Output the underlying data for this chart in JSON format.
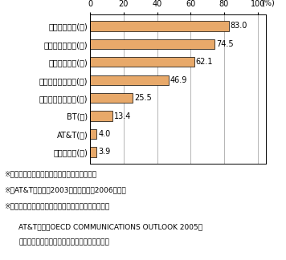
{
  "categories": [
    "ボーダフォン(英)",
    "ドイツテレコム(独)",
    "テレフォニカ(西)",
    "フランステレコム(仏)",
    "テレコムイタリア(伊)",
    "BT(英)",
    "AT&T(米)",
    "ベライゾン(米)"
  ],
  "values": [
    83.0,
    74.5,
    62.1,
    46.9,
    25.5,
    13.4,
    4.0,
    3.9
  ],
  "bar_color": "#E8A96A",
  "bar_edge_color": "#000000",
  "xlim": [
    0,
    105
  ],
  "xticks": [
    0,
    20,
    40,
    60,
    80,
    100
  ],
  "xtick_labels": [
    "0",
    "20",
    "40",
    "60",
    "80",
    "100"
  ],
  "pct_label": "(%)",
  "notes": [
    "※　日本の通信事業者の海外売上比率は非公開",
    "※　AT&Tの値のみ2003年、その他は2006年の値",
    "※　各社売上には通信サービス事業以外の売上も含む"
  ],
  "source_line1": "AT&Tのみ『OECD COMMUNICATIONS OUTLOOK 2005』",
  "source_line2": "により、その他は各社年次報告書等により作成",
  "bg_color": "#ffffff",
  "bar_height": 0.55,
  "font_size_cat": 7,
  "font_size_val": 7,
  "font_size_tick": 7,
  "font_size_note": 6.5,
  "font_size_source": 6.5
}
